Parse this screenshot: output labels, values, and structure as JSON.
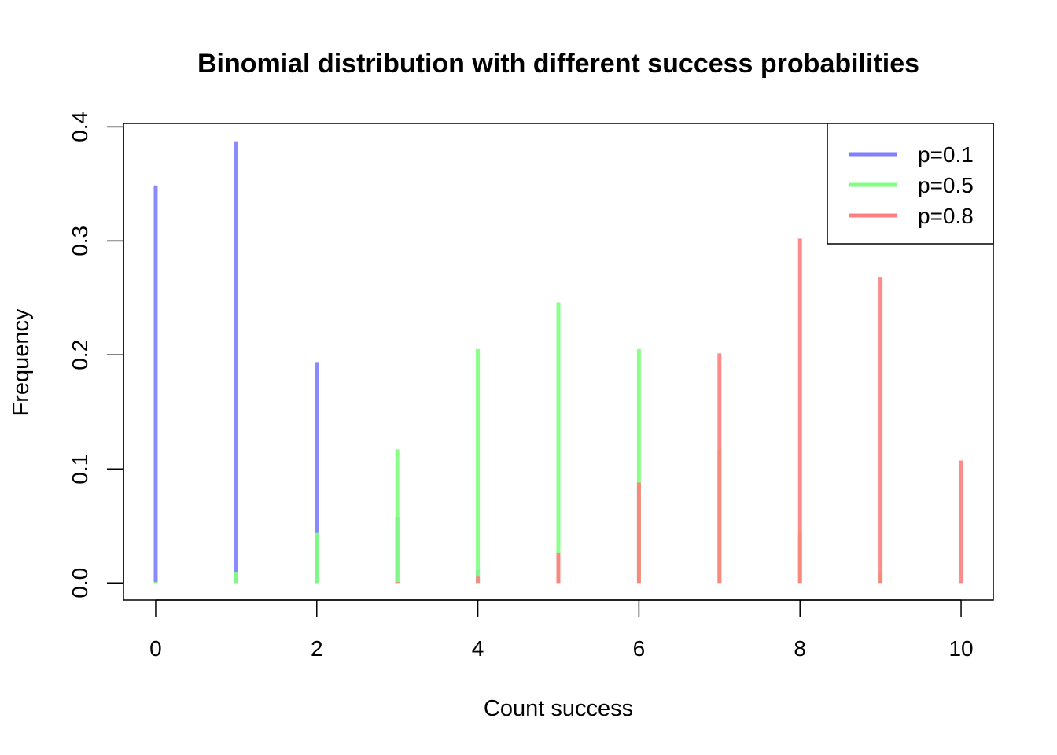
{
  "chart_data": {
    "type": "bar",
    "title": "Binomial distribution with different success probabilities",
    "xlabel": "Count success",
    "ylabel": "Frequency",
    "x": [
      0,
      1,
      2,
      3,
      4,
      5,
      6,
      7,
      8,
      9,
      10
    ],
    "xlim": [
      -0.4,
      10.4
    ],
    "ylim": [
      -0.015,
      0.403
    ],
    "x_ticks": [
      "0",
      "2",
      "4",
      "6",
      "8",
      "10"
    ],
    "y_ticks": [
      "0.0",
      "0.1",
      "0.2",
      "0.3",
      "0.4"
    ],
    "legend_position": "top-right",
    "grid": false,
    "series": [
      {
        "name": "p=0.1",
        "color": "#8080ff",
        "values": [
          0.3487,
          0.3874,
          0.1937,
          0.0574,
          0.0112,
          0.0015,
          0.0001,
          0.0,
          0.0,
          0.0,
          0.0
        ]
      },
      {
        "name": "p=0.5",
        "color": "#80ff80",
        "values": [
          0.001,
          0.0098,
          0.0439,
          0.1172,
          0.2051,
          0.2461,
          0.2051,
          0.1172,
          0.0439,
          0.0098,
          0.001
        ]
      },
      {
        "name": "p=0.8",
        "color": "#ff8080",
        "values": [
          0.0,
          0.0,
          0.0001,
          0.0008,
          0.0055,
          0.0264,
          0.0881,
          0.2013,
          0.302,
          0.2684,
          0.1074
        ]
      }
    ]
  }
}
